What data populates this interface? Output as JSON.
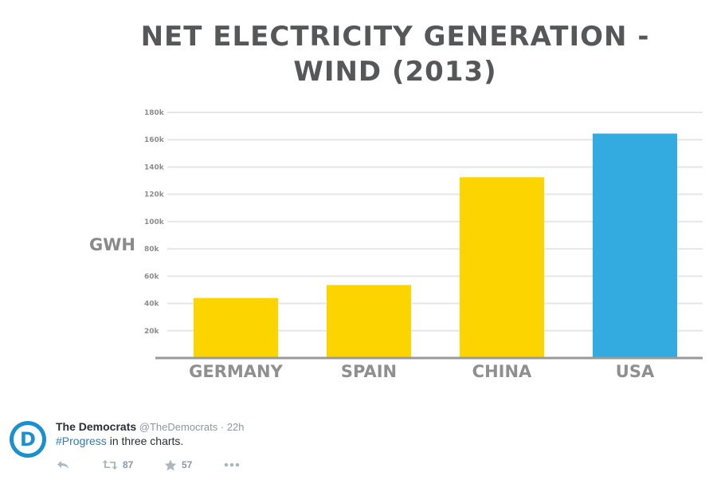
{
  "chart_data": {
    "type": "bar",
    "title_lines": [
      "NET ELECTRICITY GENERATION -",
      "WIND (2013)"
    ],
    "title": "NET ELECTRICITY GENERATION - WIND (2013)",
    "xlabel": "",
    "ylabel": "GWH",
    "categories": [
      "GERMANY",
      "SPAIN",
      "CHINA",
      "USA"
    ],
    "values": [
      44000,
      53500,
      132500,
      164500
    ],
    "bar_colors": [
      "#fcd400",
      "#fcd400",
      "#fcd400",
      "#33aae0"
    ],
    "ylim": [
      0,
      180000
    ],
    "yticks": [
      20000,
      40000,
      60000,
      80000,
      100000,
      120000,
      140000,
      160000,
      180000
    ],
    "ytick_labels": [
      "20k",
      "40k",
      "60k",
      "80k",
      "100k",
      "120k",
      "140k",
      "160k",
      "180k"
    ],
    "grid": true,
    "legend": "none"
  },
  "tweet": {
    "name": "The Democrats",
    "handle": "@TheDemocrats",
    "separator": "·",
    "time": "22h",
    "hashtag": "#Progress",
    "text_rest": " in three charts.",
    "avatar_letter": "D",
    "retweet_count": "87",
    "favorite_count": "57",
    "avatar_color": "#1b90cf",
    "link_color": "#2b7bb9"
  },
  "icons": {
    "reply": "reply-icon",
    "retweet": "retweet-icon",
    "favorite": "star-icon",
    "more": "more-icon"
  }
}
